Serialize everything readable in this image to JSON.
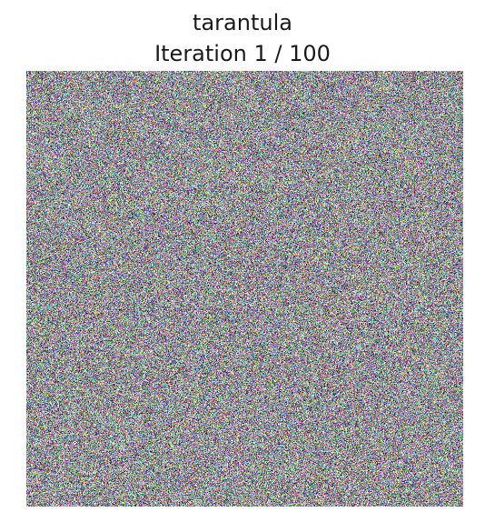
{
  "figure": {
    "title_line_1": "tarantula",
    "title_line_2": "Iteration 1 / 100",
    "image": {
      "description": "random color noise",
      "colors": [
        "#8d5a9a",
        "#5f8f68",
        "#6ea0b6",
        "#9c9a55",
        "#5f5d93",
        "#b67b86",
        "#6a5f55",
        "#c1c0cf"
      ]
    }
  }
}
